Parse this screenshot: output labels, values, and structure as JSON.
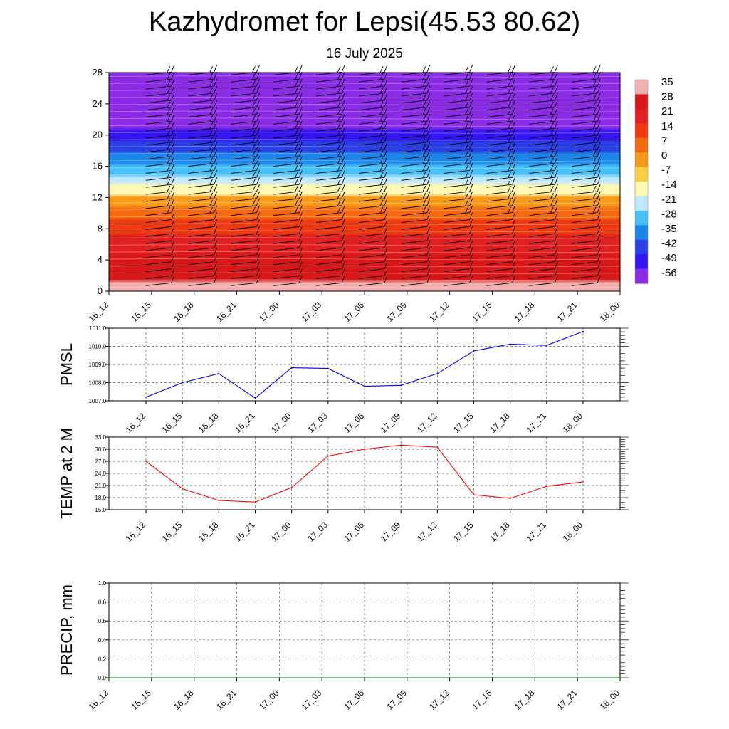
{
  "header": {
    "title": "Kazhydromet for Lepsi(45.53 80.62)",
    "subtitle": "16 July 2025"
  },
  "chart_data": [
    {
      "type": "heatmap",
      "title": "",
      "x_ticks": [
        "16_12",
        "16_15",
        "16_18",
        "16_21",
        "17_00",
        "17_03",
        "17_06",
        "17_09",
        "17_12",
        "17_15",
        "17_18",
        "17_21",
        "18_00"
      ],
      "y_ticks": [
        0,
        4,
        8,
        12,
        16,
        20,
        24,
        28
      ],
      "ylim": [
        0,
        28
      ],
      "colorbar": {
        "labels": [
          35,
          28,
          21,
          14,
          7,
          0,
          -7,
          -14,
          -21,
          -28,
          -35,
          -42,
          -49,
          -56
        ],
        "colors": [
          "#f2b0b0",
          "#d81818",
          "#e02020",
          "#ee3a10",
          "#f36a10",
          "#f69a18",
          "#fbd040",
          "#fff8b0",
          "#bfe9ff",
          "#46c0f6",
          "#1a86ea",
          "#2840e6",
          "#3414f0",
          "#8a2be6"
        ]
      },
      "temperature_profile": [
        {
          "y": 0,
          "t": 30
        },
        {
          "y": 3,
          "t": 26
        },
        {
          "y": 6,
          "t": 18
        },
        {
          "y": 9,
          "t": 8
        },
        {
          "y": 12,
          "t": -4
        },
        {
          "y": 12.5,
          "t": -16
        },
        {
          "y": 15,
          "t": -28
        },
        {
          "y": 18,
          "t": -42
        },
        {
          "y": 21,
          "t": -56
        },
        {
          "y": 23,
          "t": -58
        },
        {
          "y": 24.5,
          "t": -62
        },
        {
          "y": 28,
          "t": -62
        }
      ],
      "wind_barbs": "black barbs at every time step and height level"
    },
    {
      "type": "line",
      "ylabel": "PMSL",
      "categories": [
        "16_12",
        "16_15",
        "16_18",
        "16_21",
        "17_00",
        "17_03",
        "17_06",
        "17_09",
        "17_12",
        "17_15",
        "17_18",
        "17_21",
        "18_00"
      ],
      "series": [
        {
          "values": [
            1007.2,
            1008.0,
            1008.5,
            1007.15,
            1008.82,
            1008.78,
            1007.8,
            1007.85,
            1008.5,
            1009.75,
            1010.12,
            1010.05,
            1010.82
          ],
          "color": "#0000ff"
        }
      ],
      "ylim": [
        1007.0,
        1011.0
      ],
      "y_ticks": [
        "1007.0",
        "1008.0",
        "1009.0",
        "1010.0",
        "1011.0"
      ],
      "grid": true
    },
    {
      "type": "line",
      "ylabel": "TEMP at 2 M",
      "categories": [
        "16_12",
        "16_15",
        "16_18",
        "16_21",
        "17_00",
        "17_03",
        "17_06",
        "17_09",
        "17_12",
        "17_15",
        "17_18",
        "17_21",
        "18_00"
      ],
      "series": [
        {
          "values": [
            27.0,
            20.2,
            17.3,
            16.9,
            20.5,
            28.3,
            30.0,
            31.0,
            30.5,
            18.7,
            17.8,
            20.8,
            21.9
          ],
          "color": "#ff0000"
        }
      ],
      "ylim": [
        15.0,
        33.0
      ],
      "y_ticks": [
        "15.0",
        "18.0",
        "21.0",
        "24.0",
        "27.0",
        "30.0",
        "33.0"
      ],
      "grid": true
    },
    {
      "type": "line",
      "ylabel": "PRECIP, mm",
      "categories": [
        "16_12",
        "16_15",
        "16_18",
        "16_21",
        "17_00",
        "17_03",
        "17_06",
        "17_09",
        "17_12",
        "17_15",
        "17_18",
        "17_21",
        "18_00"
      ],
      "series": [
        {
          "values": [
            0,
            0,
            0,
            0,
            0,
            0,
            0,
            0,
            0,
            0,
            0,
            0,
            0
          ],
          "color": "#008000"
        }
      ],
      "ylim": [
        0.0,
        1.0
      ],
      "y_ticks": [
        "0.0",
        "0.2",
        "0.4",
        "0.6",
        "0.8",
        "1.0"
      ],
      "grid": true
    }
  ]
}
